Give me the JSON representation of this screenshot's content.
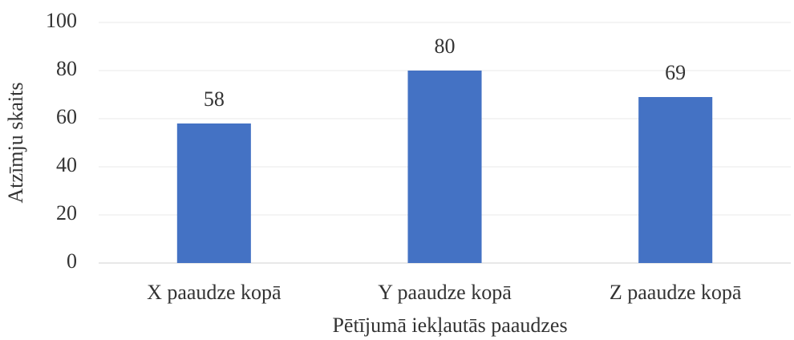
{
  "chart_data": {
    "type": "bar",
    "categories": [
      "X paaudze kopā",
      "Y paaudze kopā",
      "Z paaudze kopā"
    ],
    "values": [
      58,
      80,
      69
    ],
    "color": "#4472c4",
    "ylim": [
      0,
      100
    ],
    "yticks": [
      0,
      20,
      40,
      60,
      80,
      100
    ],
    "grid": true,
    "x_label": "Pētījumā iekļautās paaudzes",
    "y_label": "Atzīmju skaits"
  }
}
